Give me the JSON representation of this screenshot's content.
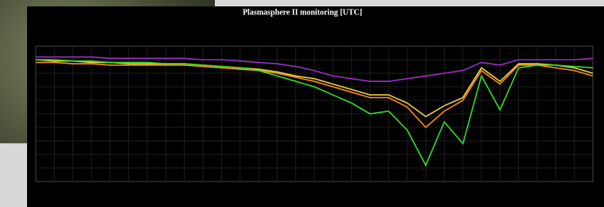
{
  "chart_data": {
    "type": "line",
    "title": "Plasmasphere II monitoring [UTC]",
    "x": [
      0,
      1,
      2,
      3,
      4,
      5,
      6,
      7,
      8,
      9,
      10,
      11,
      12,
      13,
      14,
      15,
      16,
      17,
      18,
      19,
      20,
      21,
      22,
      23,
      24,
      25,
      26,
      27,
      28,
      29,
      30
    ],
    "xlim": [
      0,
      30
    ],
    "ylim": [
      0,
      100
    ],
    "grid": true,
    "series": [
      {
        "color": "#9a2fc8",
        "values": [
          92,
          92,
          92,
          92,
          91,
          91,
          91,
          91,
          91,
          90,
          90,
          89,
          88,
          87,
          85,
          82,
          78,
          76,
          74,
          74,
          76,
          78,
          80,
          82,
          88,
          86,
          90,
          90,
          90,
          90,
          91
        ]
      },
      {
        "color": "#f0d040",
        "values": [
          90,
          89,
          89,
          88,
          88,
          87,
          87,
          87,
          87,
          86,
          85,
          84,
          83,
          81,
          78,
          76,
          72,
          68,
          64,
          64,
          58,
          48,
          56,
          62,
          84,
          74,
          87,
          87,
          86,
          84,
          80
        ]
      },
      {
        "color": "#ff8c1a",
        "values": [
          88,
          88,
          87,
          87,
          86,
          86,
          86,
          86,
          86,
          85,
          84,
          83,
          82,
          80,
          77,
          74,
          70,
          66,
          62,
          62,
          55,
          40,
          52,
          60,
          82,
          72,
          86,
          86,
          84,
          82,
          78
        ]
      },
      {
        "color": "#33e022",
        "values": [
          90,
          90,
          89,
          89,
          88,
          88,
          88,
          87,
          87,
          86,
          85,
          84,
          82,
          78,
          74,
          70,
          64,
          58,
          50,
          52,
          38,
          12,
          44,
          28,
          78,
          53,
          84,
          86,
          86,
          85,
          84
        ]
      }
    ]
  }
}
